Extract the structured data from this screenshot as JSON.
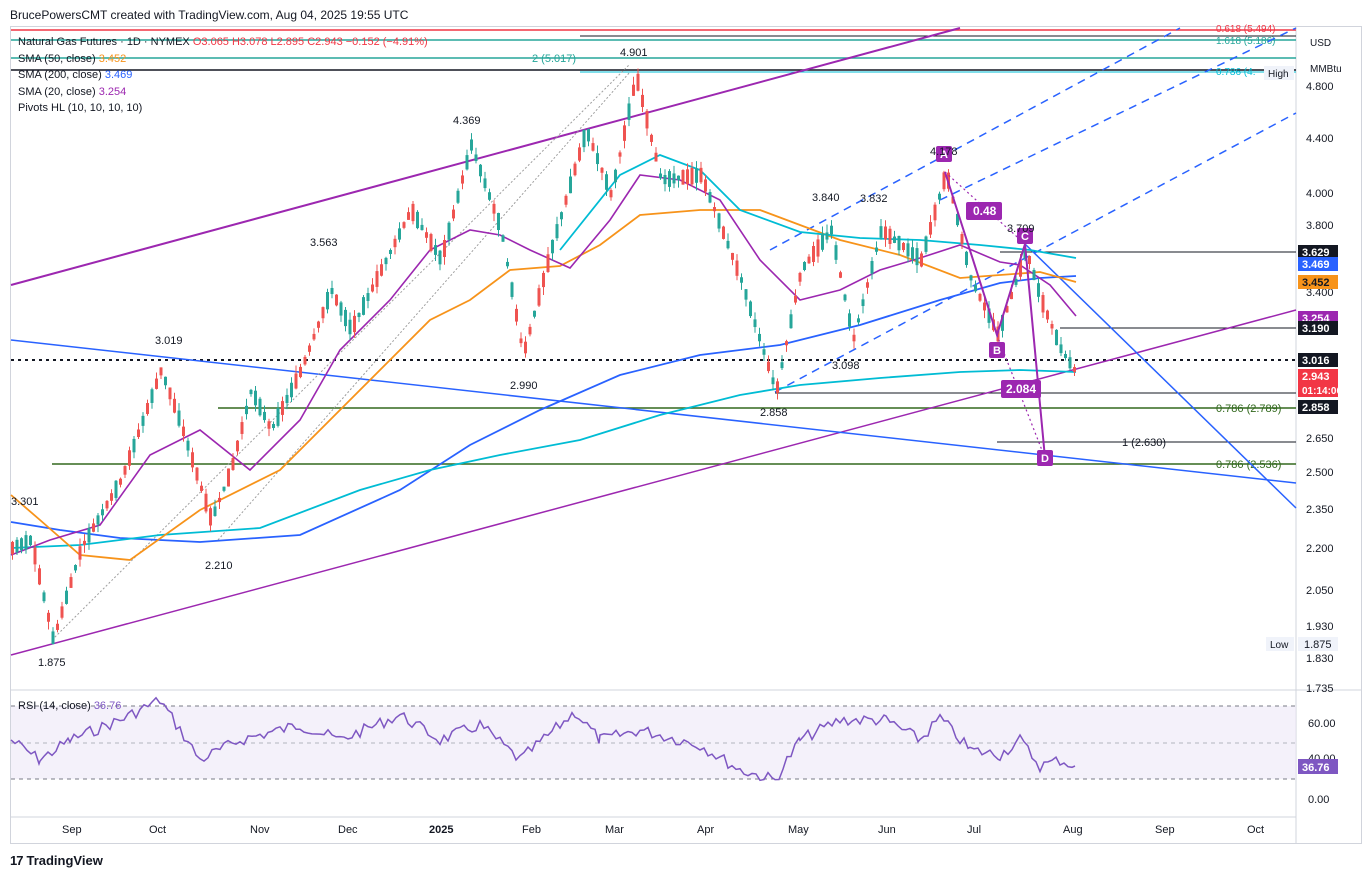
{
  "header": {
    "byline": "BrucePowersCMT created with TradingView.com, Aug 04, 2025 19:55 UTC"
  },
  "legend": {
    "symbol": "Natural Gas Futures · 1D · NYMEX",
    "ohlc": "O3.065  H3.078  L2.895  C2.943  −0.152  (−4.91%)",
    "sma50_label": "SMA (50, close)",
    "sma50_value": "3.452",
    "sma200_label": "SMA (200, close)",
    "sma200_value": "3.469",
    "sma20_label": "SMA (20, close)",
    "sma20_value": "3.254",
    "pivots_label": "Pivots HL (10, 10, 10, 10)"
  },
  "axis": {
    "currency": "USD",
    "unit": "MMBtu",
    "price_ticks": [
      "4.800",
      "4.400",
      "4.000",
      "3.800",
      "3.600",
      "3.400",
      "2.650",
      "2.500",
      "2.350",
      "2.200",
      "2.050",
      "1.930",
      "1.830",
      "1.735"
    ],
    "rsi_ticks": [
      "60.00",
      "40.00",
      "0.00"
    ],
    "months": [
      "Sep",
      "Oct",
      "Nov",
      "Dec",
      "2025",
      "Feb",
      "Mar",
      "Apr",
      "May",
      "Jun",
      "Jul",
      "Aug",
      "Sep",
      "Oct"
    ]
  },
  "price_tags": [
    {
      "text": "3.629",
      "bg": "#131722",
      "fg": "#ffffff"
    },
    {
      "text": "3.469",
      "bg": "#2962ff",
      "fg": "#ffffff"
    },
    {
      "text": "3.452",
      "bg": "#f7931a",
      "fg": "#131722"
    },
    {
      "text": "3.254",
      "bg": "#9c27b0",
      "fg": "#ffffff"
    },
    {
      "text": "3.190",
      "bg": "#131722",
      "fg": "#ffffff"
    },
    {
      "text": "3.016",
      "bg": "#131722",
      "fg": "#ffffff"
    },
    {
      "text": "2.943",
      "bg": "#f23645",
      "fg": "#ffffff"
    },
    {
      "text": "01:14:06",
      "bg": "#f23645",
      "fg": "#ffffff"
    },
    {
      "text": "2.858",
      "bg": "#131722",
      "fg": "#ffffff"
    }
  ],
  "high_low": {
    "high_label": "High",
    "low_label": "Low",
    "low_value": "1.875"
  },
  "rsi": {
    "label": "RSI (14, close)",
    "value": "36.76"
  },
  "fib_labels": {
    "f1": "0.618 (5.494)",
    "f2": "1.618 (5.186)",
    "f3": "2 (5.017)",
    "f4": "0.786 (4.",
    "f5": "0.786 (2.789)",
    "f6": "1 (2.630)",
    "f7": "0.786 (2.536)"
  },
  "pivot_labels": {
    "p1": "1.875",
    "p2": "3.019",
    "p3": "2.210",
    "p4": "3.563",
    "p5": "4.369",
    "p6": "2.990",
    "p7": "4.901",
    "p8": "2.858",
    "p9": "3.840",
    "p10": "3.832",
    "p11": "3.098",
    "p12": "4.178",
    "p13": "3.709",
    "p14": "3.301"
  },
  "harmonic": {
    "A": "A",
    "B": "B",
    "C": "C",
    "D": "D",
    "ratio1": "0.48",
    "ratio2": "2.084"
  },
  "branding": {
    "logo_text": "TradingView"
  },
  "colors": {
    "up": "#26a69a",
    "down": "#ef5350",
    "sma50": "#f7931a",
    "sma200": "#2962ff",
    "sma20": "#9c27b0",
    "sma100": "#00bcd4",
    "pattern": "#9c27b0",
    "trend": "#2962ff",
    "rsi": "#7e57c2"
  },
  "chart_data": {
    "type": "candlestick",
    "title": "Natural Gas Futures · 1D · NYMEX",
    "xlabel": "",
    "ylabel": "USD / MMBtu",
    "ylim": [
      1.735,
      5.0
    ],
    "annotated_pivots": [
      {
        "date": "2024-08",
        "value": 1.875,
        "type": "low"
      },
      {
        "date": "2024-10",
        "value": 3.019,
        "type": "high"
      },
      {
        "date": "2024-10",
        "value": 2.21,
        "type": "low"
      },
      {
        "date": "2024-11",
        "value": 3.563,
        "type": "high"
      },
      {
        "date": "2025-01",
        "value": 4.369,
        "type": "high"
      },
      {
        "date": "2025-01",
        "value": 2.99,
        "type": "low"
      },
      {
        "date": "2025-03",
        "value": 4.901,
        "type": "high"
      },
      {
        "date": "2025-04",
        "value": 2.858,
        "type": "low"
      },
      {
        "date": "2025-05",
        "value": 3.84,
        "type": "high"
      },
      {
        "date": "2025-05",
        "value": 3.098,
        "type": "low"
      },
      {
        "date": "2025-06",
        "value": 3.832,
        "type": "high"
      },
      {
        "date": "2025-06",
        "value": 4.178,
        "type": "high"
      },
      {
        "date": "2025-07",
        "value": 3.709,
        "type": "high"
      }
    ],
    "last": {
      "open": 3.065,
      "high": 3.078,
      "low": 2.895,
      "close": 2.943,
      "change": -0.152,
      "change_pct": -4.91
    },
    "sma": {
      "sma20": 3.254,
      "sma50": 3.452,
      "sma200": 3.469
    },
    "rsi_last": 36.76
  }
}
